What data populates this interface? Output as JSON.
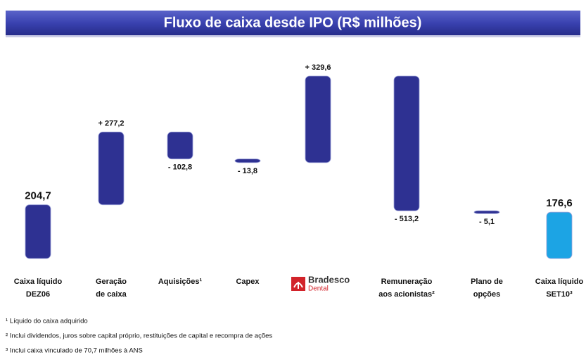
{
  "chart_data": {
    "type": "waterfall",
    "title": "Fluxo de caixa desde IPO (R$ milhões)",
    "categories": [
      [
        "Caixa líquido",
        "DEZ06"
      ],
      [
        "Geração",
        "de caixa"
      ],
      [
        "Aquisições¹"
      ],
      [
        "Capex"
      ],
      [
        "Bradesco",
        "Dental"
      ],
      [
        "Remuneração",
        "aos acionistas²"
      ],
      [
        "Plano de",
        "opções"
      ],
      [
        "Caixa líquido",
        "SET10³"
      ]
    ],
    "values": [
      204.7,
      277.2,
      -102.8,
      -13.8,
      329.6,
      -513.2,
      -5.1,
      176.6
    ],
    "value_labels": [
      "204,7",
      "+ 277,2",
      "- 102,8",
      "- 13,8",
      "+ 329,6",
      "- 513,2",
      "- 5,1",
      "176,6"
    ],
    "kinds": [
      "total",
      "delta",
      "delta",
      "delta",
      "delta",
      "delta",
      "delta",
      "total"
    ],
    "colors": [
      "#2e3192",
      "#2e3192",
      "#2e3192",
      "#2e3192",
      "#2e3192",
      "#2e3192",
      "#2e3192",
      "#1ca4e4"
    ],
    "footnotes": [
      "¹ Líquido do caixa  adquirido",
      "² Inclui dividendos, juros sobre capital próprio, restituições de capital e recompra de ações",
      "³ Inclui caixa vinculado de 70,7 milhões à ANS"
    ]
  }
}
